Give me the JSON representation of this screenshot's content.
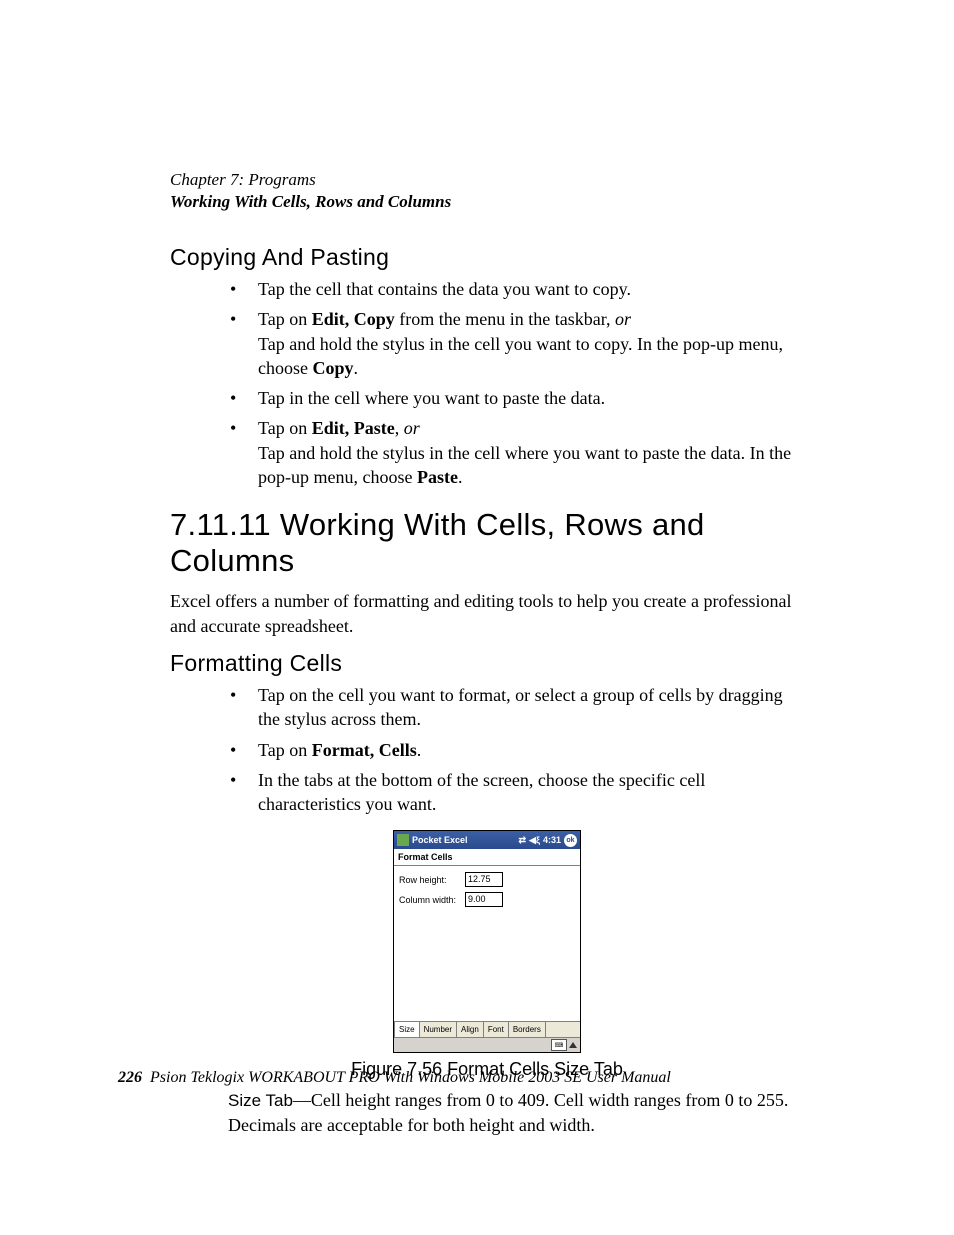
{
  "header": {
    "chapter": "Chapter 7:  Programs",
    "section": "Working With Cells, Rows and Columns"
  },
  "copying": {
    "heading": "Copying And Pasting",
    "items": [
      {
        "html": "Tap the cell that contains the data you want to copy."
      },
      {
        "html": "Tap on <b>Edit, Copy</b> from the menu in the taskbar, <i>or</i><br>Tap and hold the stylus in the cell you want to copy. In the pop-up menu, choose <b>Copy</b>."
      },
      {
        "html": "Tap in the cell where you want to paste the data."
      },
      {
        "html": "Tap on <b>Edit, Paste</b>, <i>or</i><br>Tap and hold the stylus in the cell where you want to paste the data. In the pop-up menu, choose <b>Paste</b>."
      }
    ]
  },
  "working": {
    "heading": "7.11.11  Working With Cells, Rows and Columns",
    "intro": "Excel offers a number of formatting and editing tools to help you create a professional and accurate spreadsheet."
  },
  "formatting": {
    "heading": "Formatting Cells",
    "items": [
      {
        "html": "Tap on the cell you want to format, or select a group of cells by dragging the stylus across them."
      },
      {
        "html": "Tap on <b>Format, Cells</b>."
      },
      {
        "html": "In the tabs at the bottom of the screen, choose the specific cell characteristics you want."
      }
    ]
  },
  "screenshot": {
    "app_title": "Pocket Excel",
    "time": "4:31",
    "ok": "ok",
    "dialog_title": "Format Cells",
    "row_height_label": "Row height:",
    "row_height_value": "12.75",
    "col_width_label": "Column width:",
    "col_width_value": "9.00",
    "tabs": [
      "Size",
      "Number",
      "Align",
      "Font",
      "Borders"
    ],
    "active_tab_index": 0,
    "colors": {
      "titlebar_top": "#3b5fa6",
      "titlebar_bottom": "#2a4b8d",
      "window_bg": "#ffffff",
      "tab_bg": "#ece9d8",
      "bottom_bar": "#d6d3ce",
      "border": "#808080"
    }
  },
  "figure_caption": "Figure 7.56 Format Cells Size Tab",
  "size_tab": {
    "label": "Size Tab",
    "text": "—Cell height ranges from 0 to 409. Cell width ranges from 0 to 255. Decimals are acceptable for both height and width."
  },
  "footer": {
    "page_number": "226",
    "text": "Psion Teklogix WORKABOUT PRO With Windows Mobile 2003 SE User Manual"
  },
  "style": {
    "body_font": "Times New Roman",
    "heading_font": "Arial Narrow",
    "body_fontsize": 18,
    "subhead_fontsize": 23,
    "numhead_fontsize": 31,
    "caption_fontsize": 18,
    "text_color": "#000000",
    "background_color": "#ffffff"
  }
}
